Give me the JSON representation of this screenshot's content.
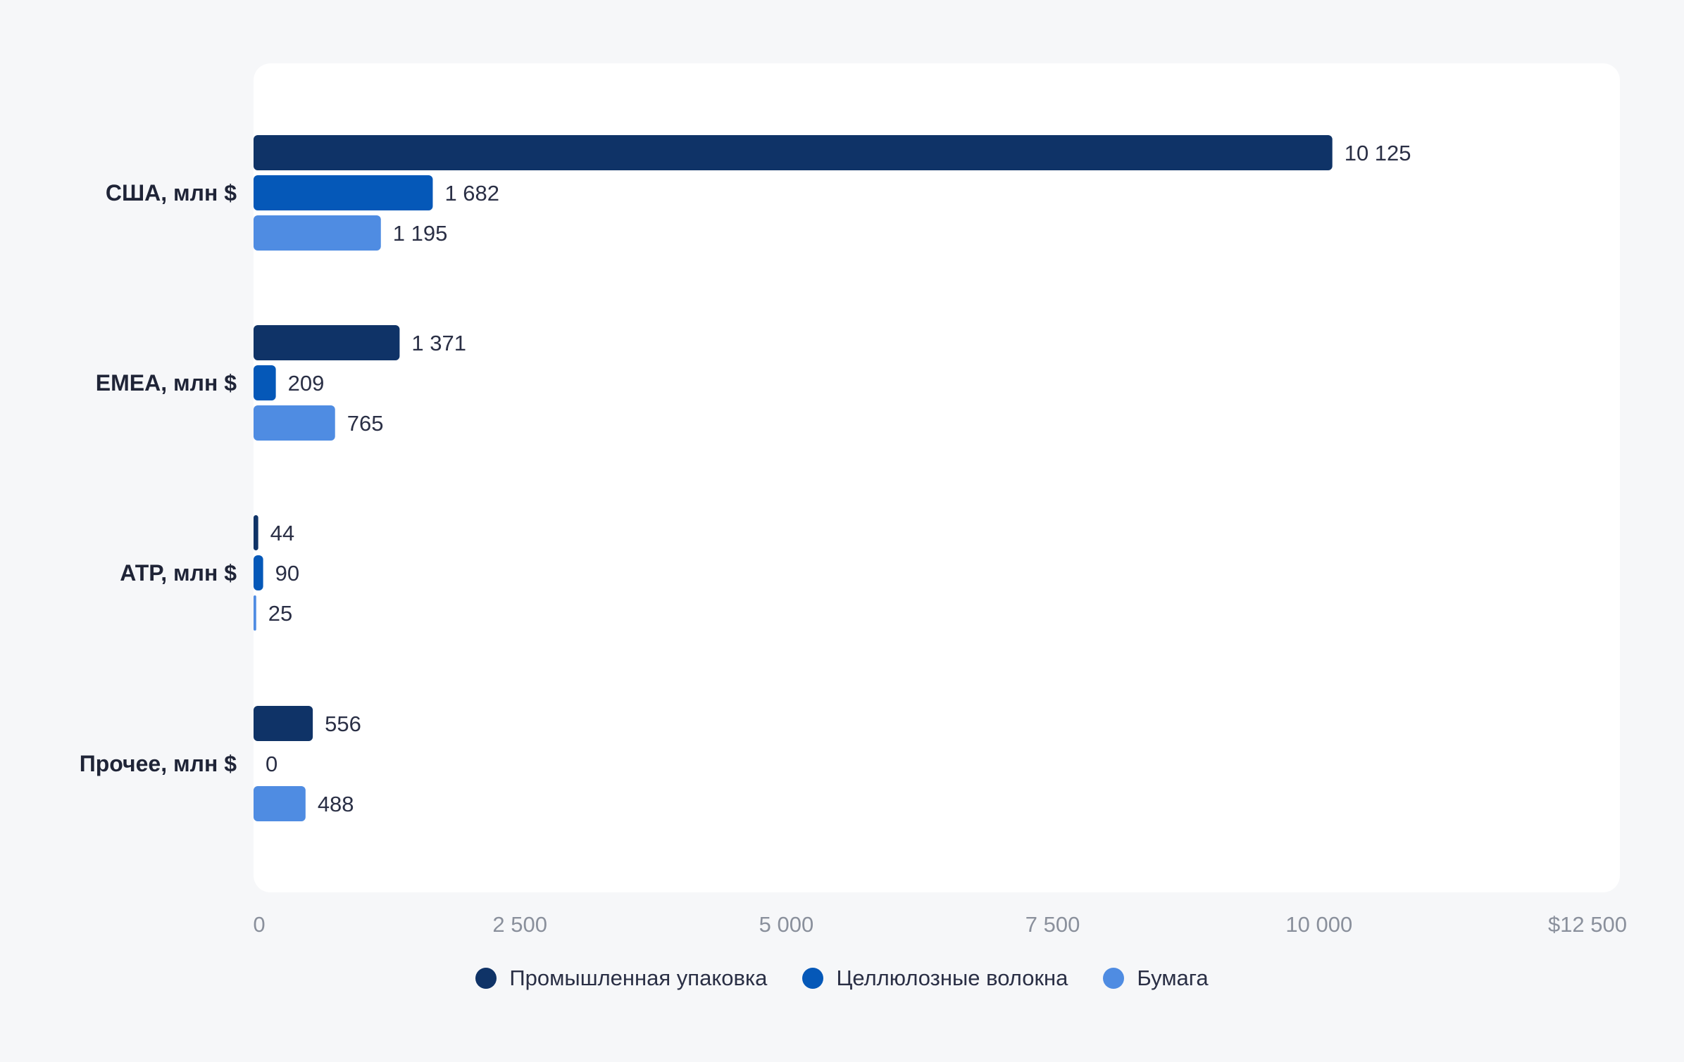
{
  "chart_data": {
    "type": "bar",
    "orientation": "horizontal",
    "categories": [
      "США, млн $",
      "EMEA, млн $",
      "АТР, млн $",
      "Прочее, млн $"
    ],
    "series": [
      {
        "name": "Промышленная упаковка",
        "color": "#0f3367",
        "values": [
          10125,
          1371,
          44,
          556
        ]
      },
      {
        "name": "Целлюлозные волокна",
        "color": "#0558b8",
        "values": [
          1682,
          209,
          90,
          0
        ]
      },
      {
        "name": "Бумага",
        "color": "#4f8ce2",
        "values": [
          1195,
          765,
          25,
          488
        ]
      }
    ],
    "value_labels": [
      [
        "10 125",
        "1 682",
        "1 195"
      ],
      [
        "1 371",
        "209",
        "765"
      ],
      [
        "44",
        "90",
        "25"
      ],
      [
        "556",
        "0",
        "488"
      ]
    ],
    "xlim": [
      0,
      12500
    ],
    "x_ticks": [
      "0",
      "2 500",
      "5 000",
      "7 500",
      "10 000",
      "$12 500"
    ],
    "x_tick_values": [
      0,
      2500,
      5000,
      7500,
      10000,
      12500
    ],
    "grid": false,
    "legend_position": "bottom-center",
    "panel_color": "#ffffff"
  }
}
